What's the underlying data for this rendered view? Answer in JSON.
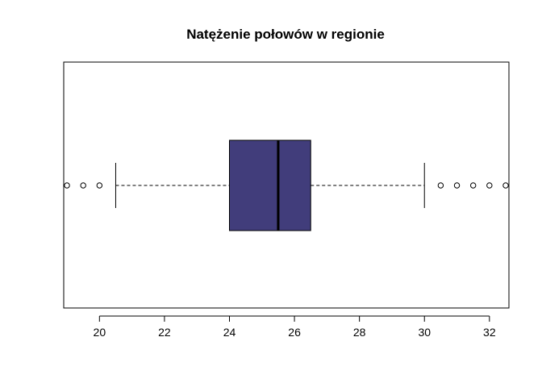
{
  "chart_data": {
    "type": "boxplot",
    "orientation": "horizontal",
    "title": "Natężenie połowów w regionie",
    "xlabel": "",
    "ylabel": "",
    "xlim": [
      18.9,
      32.6
    ],
    "ticks": [
      20,
      22,
      24,
      26,
      28,
      30,
      32
    ],
    "tick_labels": [
      "20",
      "22",
      "24",
      "26",
      "28",
      "30",
      "32"
    ],
    "box": {
      "whisker_low": 20.5,
      "q1": 24.0,
      "median": 25.5,
      "q3": 26.5,
      "whisker_high": 30.0
    },
    "outliers": [
      19.0,
      19.5,
      20.0,
      30.5,
      31.0,
      31.5,
      32.0,
      32.5
    ],
    "colors": {
      "box_fill": "#413D7B",
      "stroke": "#000000"
    },
    "grid": false
  }
}
